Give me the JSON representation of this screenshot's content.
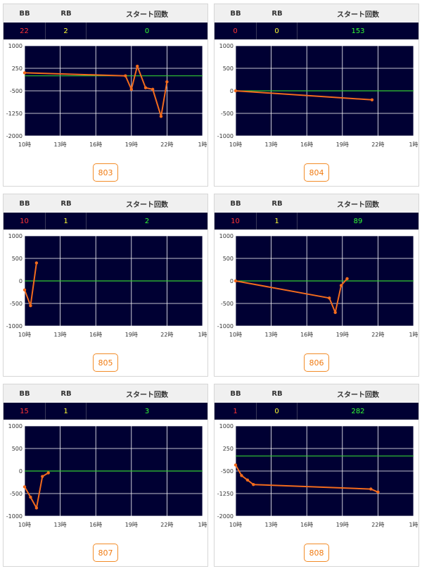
{
  "headers": {
    "bb": "BB",
    "rb": "RB",
    "start": "スタート回数"
  },
  "colors": {
    "plot_bg": "#000033",
    "grid": "#ffffff",
    "zero_line": "#33cc33",
    "series": "#f26b1d",
    "bb": "#ff3333",
    "rb": "#ffff33",
    "start": "#33ff33"
  },
  "panels": [
    {
      "bb": "22",
      "rb": "2",
      "start": "0",
      "machine": "803"
    },
    {
      "bb": "0",
      "rb": "0",
      "start": "153",
      "machine": "804"
    },
    {
      "bb": "10",
      "rb": "1",
      "start": "2",
      "machine": "805"
    },
    {
      "bb": "10",
      "rb": "1",
      "start": "89",
      "machine": "806"
    },
    {
      "bb": "15",
      "rb": "1",
      "start": "3",
      "machine": "807"
    },
    {
      "bb": "1",
      "rb": "0",
      "start": "282",
      "machine": "808"
    }
  ],
  "chart_data": [
    {
      "type": "line",
      "x_labels": [
        "10時",
        "13時",
        "16時",
        "19時",
        "22時",
        "1時"
      ],
      "xlim": [
        10,
        25
      ],
      "y_ticks": [
        1000,
        250,
        -500,
        -1250,
        -2000
      ],
      "ylim": [
        -2000,
        1000
      ],
      "x": [
        10,
        18.5,
        19,
        19.5,
        20.2,
        20.8,
        21.5,
        22
      ],
      "values": [
        100,
        0,
        -450,
        320,
        -400,
        -450,
        -1350,
        -200
      ]
    },
    {
      "type": "line",
      "x_labels": [
        "10時",
        "13時",
        "16時",
        "19時",
        "22時",
        "1時"
      ],
      "xlim": [
        10,
        25
      ],
      "y_ticks": [
        1000,
        500,
        0,
        -500,
        -1000
      ],
      "ylim": [
        -1000,
        1000
      ],
      "x": [
        10,
        21.5
      ],
      "values": [
        0,
        -200
      ]
    },
    {
      "type": "line",
      "x_labels": [
        "10時",
        "13時",
        "16時",
        "19時",
        "22時",
        "1時"
      ],
      "xlim": [
        10,
        25
      ],
      "y_ticks": [
        1000,
        500,
        0,
        -500,
        -1000
      ],
      "ylim": [
        -1000,
        1000
      ],
      "x": [
        10,
        10.5,
        11
      ],
      "values": [
        -200,
        -550,
        400
      ]
    },
    {
      "type": "line",
      "x_labels": [
        "10時",
        "13時",
        "16時",
        "19時",
        "22時",
        "1時"
      ],
      "xlim": [
        10,
        25
      ],
      "y_ticks": [
        1000,
        500,
        0,
        -500,
        -1000
      ],
      "ylim": [
        -1000,
        1000
      ],
      "x": [
        10,
        17.9,
        18.4,
        18.9,
        19.4
      ],
      "values": [
        0,
        -380,
        -700,
        -100,
        50
      ]
    },
    {
      "type": "line",
      "x_labels": [
        "10時",
        "13時",
        "16時",
        "19時",
        "22時",
        "1時"
      ],
      "xlim": [
        10,
        25
      ],
      "y_ticks": [
        1000,
        500,
        0,
        -500,
        -1000
      ],
      "ylim": [
        -1000,
        1000
      ],
      "x": [
        10,
        10.5,
        11,
        11.5,
        12
      ],
      "values": [
        -350,
        -580,
        -820,
        -120,
        -40
      ]
    },
    {
      "type": "line",
      "x_labels": [
        "10時",
        "13時",
        "16時",
        "19時",
        "22時",
        "1時"
      ],
      "xlim": [
        10,
        25
      ],
      "y_ticks": [
        1000,
        250,
        -500,
        -1250,
        -2000
      ],
      "ylim": [
        -2000,
        1000
      ],
      "x": [
        10,
        10.5,
        11,
        11.5,
        21.4,
        22
      ],
      "values": [
        -300,
        -650,
        -800,
        -950,
        -1100,
        -1200
      ]
    }
  ]
}
